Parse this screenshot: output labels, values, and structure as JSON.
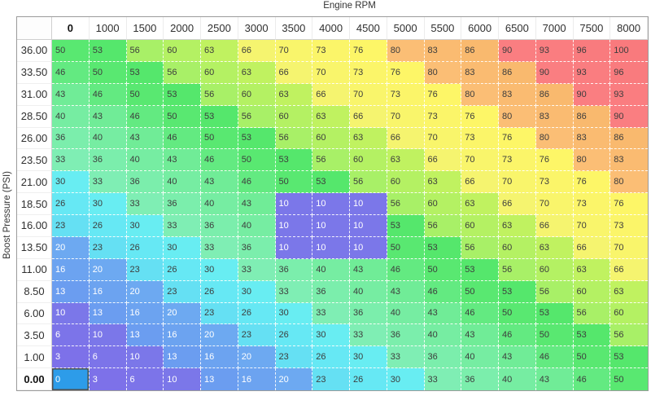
{
  "axis": {
    "x_title": "Engine RPM",
    "y_title": "Boost Pressure (PSI)"
  },
  "table": {
    "col_headers": [
      "0",
      "1000",
      "1500",
      "2000",
      "2500",
      "3000",
      "3500",
      "4000",
      "4500",
      "5000",
      "5500",
      "6000",
      "6500",
      "7000",
      "7500",
      "8000"
    ],
    "row_headers": [
      "36.00",
      "33.50",
      "31.00",
      "28.50",
      "26.00",
      "23.50",
      "21.00",
      "18.50",
      "16.00",
      "13.50",
      "11.00",
      "8.50",
      "6.00",
      "3.50",
      "1.00",
      "0.00"
    ],
    "rows": [
      [
        50,
        53,
        56,
        60,
        63,
        66,
        70,
        73,
        76,
        80,
        83,
        86,
        90,
        93,
        96,
        100
      ],
      [
        46,
        50,
        53,
        56,
        60,
        63,
        66,
        70,
        73,
        76,
        80,
        83,
        86,
        90,
        93,
        96
      ],
      [
        43,
        46,
        50,
        53,
        56,
        60,
        63,
        66,
        70,
        73,
        76,
        80,
        83,
        86,
        90,
        93
      ],
      [
        40,
        43,
        46,
        50,
        53,
        56,
        60,
        63,
        66,
        70,
        73,
        76,
        80,
        83,
        86,
        90
      ],
      [
        36,
        40,
        43,
        46,
        50,
        53,
        56,
        60,
        63,
        66,
        70,
        73,
        76,
        80,
        83,
        86
      ],
      [
        33,
        36,
        40,
        43,
        46,
        50,
        53,
        56,
        60,
        63,
        66,
        70,
        73,
        76,
        80,
        83
      ],
      [
        30,
        33,
        36,
        40,
        43,
        46,
        50,
        53,
        56,
        60,
        63,
        66,
        70,
        73,
        76,
        80
      ],
      [
        26,
        30,
        33,
        36,
        40,
        43,
        10,
        10,
        10,
        56,
        60,
        63,
        66,
        70,
        73,
        76
      ],
      [
        23,
        26,
        30,
        33,
        36,
        40,
        10,
        10,
        10,
        53,
        56,
        60,
        63,
        66,
        70,
        73
      ],
      [
        20,
        23,
        26,
        30,
        33,
        36,
        10,
        10,
        10,
        50,
        53,
        56,
        60,
        63,
        66,
        70
      ],
      [
        16,
        20,
        23,
        26,
        30,
        33,
        36,
        40,
        43,
        46,
        50,
        53,
        56,
        60,
        63,
        66
      ],
      [
        13,
        16,
        20,
        23,
        26,
        30,
        33,
        36,
        40,
        43,
        46,
        50,
        53,
        56,
        60,
        63
      ],
      [
        10,
        13,
        16,
        20,
        23,
        26,
        30,
        33,
        36,
        40,
        43,
        46,
        50,
        53,
        56,
        60
      ],
      [
        6,
        10,
        13,
        16,
        20,
        23,
        26,
        30,
        33,
        36,
        40,
        43,
        46,
        50,
        53,
        56
      ],
      [
        3,
        6,
        10,
        13,
        16,
        20,
        23,
        26,
        30,
        33,
        36,
        40,
        43,
        46,
        50,
        53
      ],
      [
        0,
        3,
        6,
        10,
        13,
        16,
        20,
        23,
        26,
        30,
        33,
        36,
        40,
        43,
        46,
        50
      ]
    ],
    "selected": {
      "row_header": "0.00",
      "col_header": "0",
      "row_index": 15,
      "col_index": 0,
      "value": 0
    }
  },
  "style": {
    "value_colors": {
      "0": "#2d9ce9",
      "3": "#7d71e9",
      "6": "#7c74e9",
      "10": "#7b77e9",
      "13": "#6b9df0",
      "16": "#6ca3f0",
      "20": "#6da9f1",
      "23": "#65e0f3",
      "26": "#66e8f4",
      "30": "#68edf2",
      "33": "#7feeb4",
      "36": "#7beeac",
      "40": "#76eda2",
      "43": "#70ec97",
      "46": "#63ea81",
      "50": "#59e871",
      "53": "#55e76c",
      "56": "#a8f067",
      "60": "#b4f163",
      "63": "#c0f260",
      "66": "#f5f46f",
      "70": "#f9f56b",
      "73": "#fbf569",
      "76": "#fdf667",
      "80": "#fbbe75",
      "83": "#fabb71",
      "86": "#f9b96e",
      "90": "#fa7e81",
      "93": "#fa7d80",
      "96": "#f97b7e",
      "100": "#f97a7d"
    },
    "white_text_max": 20,
    "light_text": "#ffffff",
    "dark_text": "#3d3d3d",
    "outer_border": "#9b9b9b",
    "selected_cell_border": "#4f4f4f"
  }
}
